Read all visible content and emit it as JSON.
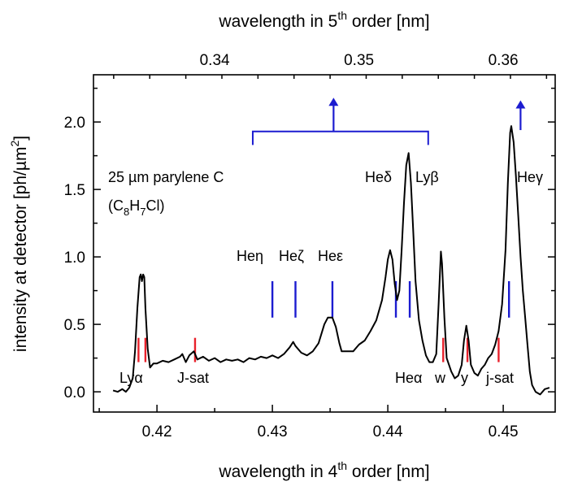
{
  "chart_data": {
    "type": "line",
    "title": "",
    "xlabel_bottom": {
      "prefix": "wavelength in 4",
      "sup": "th",
      "suffix": " order [nm]"
    },
    "xlabel_top": {
      "prefix": "wavelength in 5",
      "sup": "th",
      "suffix": " order [nm]"
    },
    "ylabel": {
      "prefix": "intensity at detector [ph/µm",
      "sup": "2",
      "suffix": "]"
    },
    "xlim": [
      0.4145,
      0.4545
    ],
    "ylim": [
      -0.15,
      2.35
    ],
    "x_ticks": [
      0.42,
      0.43,
      0.44,
      0.45
    ],
    "x_tick_labels": [
      "0.42",
      "0.43",
      "0.44",
      "0.45"
    ],
    "x_top_ticks": [
      0.34,
      0.35,
      0.36
    ],
    "x_top_tick_labels": [
      "0.34",
      "0.35",
      "0.36"
    ],
    "y_ticks": [
      0.0,
      0.5,
      1.0,
      1.5,
      2.0
    ],
    "y_tick_labels": [
      "0.0",
      "0.5",
      "1.0",
      "1.5",
      "2.0"
    ],
    "series": [
      {
        "color": "#000000",
        "points": [
          [
            0.4162,
            0.01
          ],
          [
            0.4166,
            0.0
          ],
          [
            0.417,
            0.02
          ],
          [
            0.4173,
            0.0
          ],
          [
            0.4176,
            0.03
          ],
          [
            0.4179,
            0.1
          ],
          [
            0.4181,
            0.3
          ],
          [
            0.4183,
            0.62
          ],
          [
            0.4185,
            0.85
          ],
          [
            0.4186,
            0.87
          ],
          [
            0.4187,
            0.82
          ],
          [
            0.4188,
            0.87
          ],
          [
            0.4189,
            0.85
          ],
          [
            0.419,
            0.62
          ],
          [
            0.4192,
            0.32
          ],
          [
            0.4194,
            0.18
          ],
          [
            0.4197,
            0.21
          ],
          [
            0.42,
            0.21
          ],
          [
            0.4205,
            0.23
          ],
          [
            0.421,
            0.22
          ],
          [
            0.4215,
            0.24
          ],
          [
            0.422,
            0.26
          ],
          [
            0.4222,
            0.28
          ],
          [
            0.4225,
            0.22
          ],
          [
            0.4228,
            0.27
          ],
          [
            0.4232,
            0.3
          ],
          [
            0.4235,
            0.24
          ],
          [
            0.424,
            0.26
          ],
          [
            0.4245,
            0.23
          ],
          [
            0.425,
            0.25
          ],
          [
            0.4255,
            0.22
          ],
          [
            0.426,
            0.24
          ],
          [
            0.4265,
            0.23
          ],
          [
            0.427,
            0.24
          ],
          [
            0.4275,
            0.22
          ],
          [
            0.428,
            0.25
          ],
          [
            0.4285,
            0.24
          ],
          [
            0.429,
            0.26
          ],
          [
            0.4295,
            0.25
          ],
          [
            0.43,
            0.27
          ],
          [
            0.4305,
            0.25
          ],
          [
            0.431,
            0.28
          ],
          [
            0.4315,
            0.33
          ],
          [
            0.4318,
            0.37
          ],
          [
            0.432,
            0.34
          ],
          [
            0.4325,
            0.29
          ],
          [
            0.433,
            0.27
          ],
          [
            0.4335,
            0.3
          ],
          [
            0.434,
            0.36
          ],
          [
            0.4345,
            0.5
          ],
          [
            0.4348,
            0.55
          ],
          [
            0.4352,
            0.55
          ],
          [
            0.4355,
            0.48
          ],
          [
            0.4358,
            0.36
          ],
          [
            0.436,
            0.3
          ],
          [
            0.4365,
            0.3
          ],
          [
            0.437,
            0.3
          ],
          [
            0.4375,
            0.35
          ],
          [
            0.438,
            0.38
          ],
          [
            0.4385,
            0.45
          ],
          [
            0.439,
            0.53
          ],
          [
            0.4395,
            0.68
          ],
          [
            0.4398,
            0.85
          ],
          [
            0.44,
            0.98
          ],
          [
            0.4402,
            1.05
          ],
          [
            0.4404,
            0.98
          ],
          [
            0.4406,
            0.8
          ],
          [
            0.4408,
            0.68
          ],
          [
            0.441,
            0.75
          ],
          [
            0.4412,
            1.05
          ],
          [
            0.4414,
            1.4
          ],
          [
            0.4416,
            1.68
          ],
          [
            0.4418,
            1.77
          ],
          [
            0.442,
            1.55
          ],
          [
            0.4422,
            1.2
          ],
          [
            0.4424,
            0.82
          ],
          [
            0.4427,
            0.53
          ],
          [
            0.443,
            0.38
          ],
          [
            0.4433,
            0.27
          ],
          [
            0.4436,
            0.22
          ],
          [
            0.4439,
            0.22
          ],
          [
            0.4442,
            0.28
          ],
          [
            0.4444,
            0.65
          ],
          [
            0.4446,
            1.04
          ],
          [
            0.4447,
            0.95
          ],
          [
            0.4449,
            0.55
          ],
          [
            0.4451,
            0.25
          ],
          [
            0.4455,
            0.15
          ],
          [
            0.4458,
            0.1
          ],
          [
            0.4461,
            0.12
          ],
          [
            0.4464,
            0.2
          ],
          [
            0.4466,
            0.38
          ],
          [
            0.4468,
            0.49
          ],
          [
            0.447,
            0.38
          ],
          [
            0.4472,
            0.2
          ],
          [
            0.4475,
            0.14
          ],
          [
            0.4478,
            0.12
          ],
          [
            0.4481,
            0.17
          ],
          [
            0.4484,
            0.2
          ],
          [
            0.4487,
            0.25
          ],
          [
            0.449,
            0.28
          ],
          [
            0.4493,
            0.35
          ],
          [
            0.4496,
            0.45
          ],
          [
            0.4499,
            0.65
          ],
          [
            0.4502,
            1.05
          ],
          [
            0.4504,
            1.55
          ],
          [
            0.4506,
            1.92
          ],
          [
            0.4507,
            1.97
          ],
          [
            0.4509,
            1.85
          ],
          [
            0.4511,
            1.6
          ],
          [
            0.4513,
            1.3
          ],
          [
            0.4515,
            1.0
          ],
          [
            0.4517,
            0.75
          ],
          [
            0.4519,
            0.55
          ],
          [
            0.4521,
            0.35
          ],
          [
            0.4523,
            0.15
          ],
          [
            0.4525,
            0.05
          ],
          [
            0.4528,
            0.0
          ],
          [
            0.4532,
            -0.02
          ],
          [
            0.4536,
            0.02
          ],
          [
            0.454,
            0.03
          ]
        ]
      }
    ],
    "red_markers": [
      {
        "x": 0.4184,
        "y0": 0.22,
        "y1": 0.4
      },
      {
        "x": 0.419,
        "y0": 0.22,
        "y1": 0.4
      },
      {
        "x": 0.4233,
        "y0": 0.22,
        "y1": 0.4
      },
      {
        "x": 0.4448,
        "y0": 0.22,
        "y1": 0.4
      },
      {
        "x": 0.4469,
        "y0": 0.22,
        "y1": 0.4
      },
      {
        "x": 0.4496,
        "y0": 0.22,
        "y1": 0.4
      }
    ],
    "blue_markers": [
      {
        "x": 0.43,
        "y0": 0.55,
        "y1": 0.82
      },
      {
        "x": 0.432,
        "y0": 0.55,
        "y1": 0.82
      },
      {
        "x": 0.4352,
        "y0": 0.55,
        "y1": 0.82
      },
      {
        "x": 0.4407,
        "y0": 0.55,
        "y1": 0.82
      },
      {
        "x": 0.4419,
        "y0": 0.55,
        "y1": 0.82
      },
      {
        "x": 0.4505,
        "y0": 0.55,
        "y1": 0.82
      }
    ],
    "bracket": {
      "x0": 0.4283,
      "x1": 0.4435,
      "y": 1.93,
      "tick_down": 0.1,
      "arrow_x": 0.4353,
      "arrow_top": 2.18
    },
    "side_arrow": {
      "x": 0.4515,
      "y0": 1.94,
      "y1": 2.16
    },
    "colors": {
      "curve": "#000000",
      "red_marker": "#e8212b",
      "blue_marker": "#1c1cd0"
    },
    "annotations": {
      "sample_line1": "25 µm parylene C",
      "sample_formula": {
        "open": "(C",
        "sub1": "8",
        "h": "H",
        "sub2": "7",
        "close": "Cl)"
      },
      "he_eta": "Heη",
      "he_zeta": "Heζ",
      "he_eps": "Heε",
      "he_delta": "Heδ",
      "ly_beta": "Lyβ",
      "he_gamma": "Heγ",
      "ly_alpha": "Lyα",
      "j_sat_upper": "J-sat",
      "he_alpha": "Heα",
      "w": "w",
      "y": "y",
      "j_sat_lower": "j-sat"
    }
  }
}
